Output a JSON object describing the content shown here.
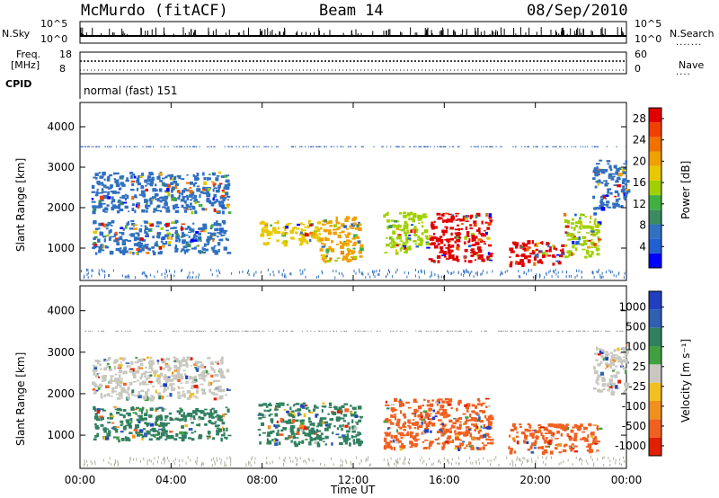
{
  "header": {
    "station": "McMurdo (fitACF)",
    "beam": "Beam 14",
    "date": "08/Sep/2010"
  },
  "strip": {
    "nsky_label": "N.Sky",
    "nsky_ticks": [
      "10^5",
      "10^0"
    ],
    "nsearch_label": "N.Search",
    "nsearch_ticks": [
      "10^5",
      "10^0"
    ],
    "freq_label_1": "Freq.",
    "freq_label_2": "[MHz]",
    "freq_ticks": [
      "18",
      "8"
    ],
    "nave_label": "Nave",
    "nave_ticks": [
      "60",
      "0"
    ],
    "cpid_label": "CPID",
    "cpid_value": "normal (fast) 151"
  },
  "chart_data": [
    {
      "type": "heatmap",
      "panel": "power",
      "xlabel": "",
      "ylabel": "Slant Range [km]",
      "xlim": [
        "00:00",
        "24:00"
      ],
      "ylim": [
        200,
        4600
      ],
      "yticks": [
        1000,
        2000,
        3000,
        4000
      ],
      "colorbar": {
        "label": "Power [dB]",
        "ticks": [
          4,
          8,
          12,
          16,
          20,
          24,
          28
        ],
        "colors": [
          "#0000ff",
          "#2060d0",
          "#3070c0",
          "#3a8c60",
          "#40b040",
          "#a0d000",
          "#e8c800",
          "#f0a000",
          "#f07000",
          "#f04000",
          "#e00000"
        ]
      },
      "regions": [
        {
          "t0": 0.5,
          "t1": 6.5,
          "r0": 1900,
          "r1": 2900,
          "level": 8
        },
        {
          "t0": 0.5,
          "t1": 6.5,
          "r0": 900,
          "r1": 1700,
          "level": 7
        },
        {
          "t0": 7.8,
          "t1": 10.5,
          "r0": 1100,
          "r1": 1700,
          "level": 18
        },
        {
          "t0": 10.5,
          "t1": 12.3,
          "r0": 700,
          "r1": 1800,
          "level": 20
        },
        {
          "t0": 13.3,
          "t1": 15.3,
          "r0": 900,
          "r1": 1900,
          "level": 16
        },
        {
          "t0": 15.3,
          "t1": 18.0,
          "r0": 700,
          "r1": 1900,
          "level": 28
        },
        {
          "t0": 18.8,
          "t1": 21.2,
          "r0": 600,
          "r1": 1200,
          "level": 28
        },
        {
          "t0": 21.2,
          "t1": 22.8,
          "r0": 800,
          "r1": 1900,
          "level": 14
        },
        {
          "t0": 22.5,
          "t1": 24.0,
          "r0": 2000,
          "r1": 3200,
          "level": 6
        }
      ]
    },
    {
      "type": "heatmap",
      "panel": "velocity",
      "xlabel": "Time UT",
      "ylabel": "Slant Range [km]",
      "xlim": [
        "00:00",
        "24:00"
      ],
      "ylim": [
        200,
        4600
      ],
      "xticks": [
        "00:00",
        "04:00",
        "08:00",
        "12:00",
        "16:00",
        "20:00",
        "00:00"
      ],
      "yticks": [
        1000,
        2000,
        3000,
        4000
      ],
      "colorbar": {
        "label": "Velocity [m s⁻¹]",
        "ticks": [
          1000,
          500,
          100,
          25,
          -25,
          -100,
          -500,
          -1000
        ],
        "colors": [
          "#2040c0",
          "#3060b0",
          "#308060",
          "#40a040",
          "#c8c8c0",
          "#f0c020",
          "#f09020",
          "#f06020",
          "#e02000"
        ]
      },
      "regions": [
        {
          "t0": 0.5,
          "t1": 6.5,
          "r0": 1900,
          "r1": 2900,
          "level": 0
        },
        {
          "t0": 0.5,
          "t1": 6.5,
          "r0": 900,
          "r1": 1700,
          "level": 150
        },
        {
          "t0": 7.8,
          "t1": 12.3,
          "r0": 800,
          "r1": 1800,
          "level": 400
        },
        {
          "t0": 13.3,
          "t1": 18.0,
          "r0": 700,
          "r1": 1900,
          "level": -300
        },
        {
          "t0": 18.8,
          "t1": 22.8,
          "r0": 600,
          "r1": 1300,
          "level": -200
        },
        {
          "t0": 22.5,
          "t1": 24.0,
          "r0": 2000,
          "r1": 3200,
          "level": 0
        }
      ]
    }
  ]
}
